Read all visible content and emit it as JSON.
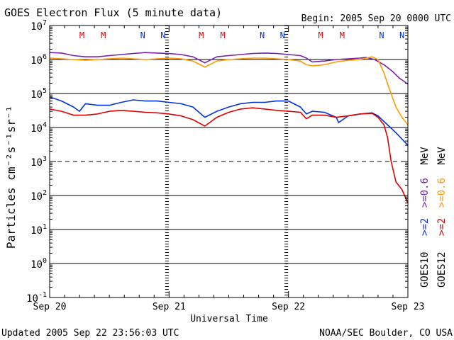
{
  "title": "GOES Electron Flux (5 minute data)",
  "begin_label": "Begin: 2005 Sep 20 0000 UTC",
  "footer_left": "Updated 2005 Sep 22 23:56:03 UTC",
  "footer_right": "NOAA/SEC Boulder, CO USA",
  "colors": {
    "goes12_low": "#ff9900",
    "goes12_high": "#dd0000",
    "goes10_low": "#7722aa",
    "goes10_high": "#0033dd",
    "marker_m": "#dd0000",
    "marker_n": "#0033dd",
    "axis": "#000000"
  },
  "legend": {
    "goes10": {
      "sat": "GOES10",
      "e2": ">=2",
      "e06": ">=0.6",
      "unit": "MeV"
    },
    "goes12": {
      "sat": "GOES12",
      "e2": ">=2",
      "e06": ">=0.6",
      "unit": "MeV"
    }
  },
  "chart_data": {
    "type": "line",
    "title": "GOES Electron Flux (5 minute data)",
    "xlabel": "Universal Time",
    "ylabel": "Particles cm⁻²s⁻¹sr⁻¹",
    "x_unit": "days since 2005 Sep 20 00:00 UTC",
    "xlim": [
      0,
      3
    ],
    "x_ticks": [
      {
        "value": 0,
        "label": "Sep 20"
      },
      {
        "value": 1,
        "label": "Sep 21"
      },
      {
        "value": 2,
        "label": "Sep 22"
      },
      {
        "value": 3,
        "label": "Sep 23"
      }
    ],
    "y_scale": "log",
    "ylim_exponent": [
      -1,
      7
    ],
    "y_ticks": [
      {
        "exp": -1,
        "base": "10",
        "sup": "-1"
      },
      {
        "exp": 0,
        "base": "10",
        "sup": "0"
      },
      {
        "exp": 1,
        "base": "10",
        "sup": "1"
      },
      {
        "exp": 2,
        "base": "10",
        "sup": "2"
      },
      {
        "exp": 3,
        "base": "10",
        "sup": "3"
      },
      {
        "exp": 4,
        "base": "10",
        "sup": "4"
      },
      {
        "exp": 5,
        "base": "10",
        "sup": "5"
      },
      {
        "exp": 6,
        "base": "10",
        "sup": "6"
      },
      {
        "exp": 7,
        "base": "10",
        "sup": "7"
      }
    ],
    "solid_gridlines_exp": [
      0,
      1,
      2,
      4,
      5,
      6
    ],
    "dashed_gridlines_exp": [
      3
    ],
    "local_time_markers": [
      {
        "label": "M",
        "x": 0.27
      },
      {
        "label": "M",
        "x": 0.45
      },
      {
        "label": "N",
        "x": 0.78
      },
      {
        "label": "N",
        "x": 0.95
      },
      {
        "label": "M",
        "x": 1.27
      },
      {
        "label": "M",
        "x": 1.45
      },
      {
        "label": "N",
        "x": 1.78
      },
      {
        "label": "N",
        "x": 1.95
      },
      {
        "label": "M",
        "x": 2.27
      },
      {
        "label": "M",
        "x": 2.45
      },
      {
        "label": "N",
        "x": 2.78
      },
      {
        "label": "N",
        "x": 2.95
      }
    ],
    "series": [
      {
        "name": "GOES10 >=0.6 MeV",
        "color_key": "goes10_low",
        "points": [
          [
            0.0,
            1600000.0
          ],
          [
            0.1,
            1550000.0
          ],
          [
            0.2,
            1300000.0
          ],
          [
            0.3,
            1200000.0
          ],
          [
            0.4,
            1200000.0
          ],
          [
            0.5,
            1300000.0
          ],
          [
            0.6,
            1400000.0
          ],
          [
            0.7,
            1500000.0
          ],
          [
            0.8,
            1600000.0
          ],
          [
            0.9,
            1550000.0
          ],
          [
            1.0,
            1500000.0
          ],
          [
            1.1,
            1400000.0
          ],
          [
            1.2,
            1200000.0
          ],
          [
            1.3,
            800000.0
          ],
          [
            1.4,
            1200000.0
          ],
          [
            1.5,
            1300000.0
          ],
          [
            1.6,
            1400000.0
          ],
          [
            1.7,
            1500000.0
          ],
          [
            1.8,
            1550000.0
          ],
          [
            1.9,
            1500000.0
          ],
          [
            2.0,
            1400000.0
          ],
          [
            2.1,
            1300000.0
          ],
          [
            2.15,
            1100000.0
          ],
          [
            2.2,
            850000.0
          ],
          [
            2.3,
            900000.0
          ],
          [
            2.4,
            1000000.0
          ],
          [
            2.5,
            1050000.0
          ],
          [
            2.6,
            1100000.0
          ],
          [
            2.65,
            1150000.0
          ],
          [
            2.72,
            1000000.0
          ],
          [
            2.8,
            700000.0
          ],
          [
            2.87,
            450000.0
          ],
          [
            2.93,
            280000.0
          ],
          [
            3.0,
            190000.0
          ]
        ]
      },
      {
        "name": "GOES12 >=0.6 MeV",
        "color_key": "goes12_low",
        "points": [
          [
            0.0,
            1100000.0
          ],
          [
            0.1,
            1050000.0
          ],
          [
            0.2,
            1000000.0
          ],
          [
            0.3,
            950000.0
          ],
          [
            0.4,
            1000000.0
          ],
          [
            0.5,
            1050000.0
          ],
          [
            0.6,
            1100000.0
          ],
          [
            0.7,
            1050000.0
          ],
          [
            0.8,
            1000000.0
          ],
          [
            0.9,
            1050000.0
          ],
          [
            1.0,
            1100000.0
          ],
          [
            1.1,
            1050000.0
          ],
          [
            1.2,
            900000.0
          ],
          [
            1.3,
            600000.0
          ],
          [
            1.4,
            900000.0
          ],
          [
            1.5,
            1000000.0
          ],
          [
            1.6,
            1050000.0
          ],
          [
            1.7,
            1100000.0
          ],
          [
            1.8,
            1100000.0
          ],
          [
            1.9,
            1050000.0
          ],
          [
            2.0,
            1000000.0
          ],
          [
            2.1,
            900000.0
          ],
          [
            2.15,
            700000.0
          ],
          [
            2.2,
            650000.0
          ],
          [
            2.3,
            700000.0
          ],
          [
            2.4,
            850000.0
          ],
          [
            2.5,
            950000.0
          ],
          [
            2.6,
            1000000.0
          ],
          [
            2.7,
            1200000.0
          ],
          [
            2.75,
            1000000.0
          ],
          [
            2.8,
            400000.0
          ],
          [
            2.85,
            120000.0
          ],
          [
            2.9,
            40000.0
          ],
          [
            2.95,
            20000.0
          ],
          [
            3.0,
            12000.0
          ]
        ]
      },
      {
        "name": "GOES10 >=2 MeV",
        "color_key": "goes10_high",
        "points": [
          [
            0.0,
            80000.0
          ],
          [
            0.1,
            60000.0
          ],
          [
            0.2,
            40000.0
          ],
          [
            0.25,
            30000.0
          ],
          [
            0.3,
            50000.0
          ],
          [
            0.4,
            45000.0
          ],
          [
            0.5,
            45000.0
          ],
          [
            0.6,
            55000.0
          ],
          [
            0.7,
            65000.0
          ],
          [
            0.8,
            60000.0
          ],
          [
            0.9,
            60000.0
          ],
          [
            1.0,
            55000.0
          ],
          [
            1.1,
            50000.0
          ],
          [
            1.2,
            40000.0
          ],
          [
            1.3,
            20000.0
          ],
          [
            1.4,
            30000.0
          ],
          [
            1.5,
            40000.0
          ],
          [
            1.6,
            50000.0
          ],
          [
            1.7,
            55000.0
          ],
          [
            1.8,
            55000.0
          ],
          [
            1.9,
            60000.0
          ],
          [
            2.0,
            60000.0
          ],
          [
            2.1,
            40000.0
          ],
          [
            2.15,
            25000.0
          ],
          [
            2.2,
            30000.0
          ],
          [
            2.3,
            28000.0
          ],
          [
            2.4,
            20000.0
          ],
          [
            2.42,
            14000.0
          ],
          [
            2.5,
            22000.0
          ],
          [
            2.6,
            25000.0
          ],
          [
            2.7,
            27000.0
          ],
          [
            2.75,
            22000.0
          ],
          [
            2.8,
            15000.0
          ],
          [
            2.9,
            7000.0
          ],
          [
            3.0,
            3000.0
          ]
        ]
      },
      {
        "name": "GOES12 >=2 MeV",
        "color_key": "goes12_high",
        "points": [
          [
            0.0,
            35000.0
          ],
          [
            0.1,
            30000.0
          ],
          [
            0.2,
            23000.0
          ],
          [
            0.3,
            23000.0
          ],
          [
            0.4,
            25000.0
          ],
          [
            0.5,
            30000.0
          ],
          [
            0.6,
            32000.0
          ],
          [
            0.7,
            30000.0
          ],
          [
            0.8,
            28000.0
          ],
          [
            0.9,
            27000.0
          ],
          [
            1.0,
            25000.0
          ],
          [
            1.1,
            22000.0
          ],
          [
            1.2,
            17000.0
          ],
          [
            1.3,
            11000.0
          ],
          [
            1.4,
            20000.0
          ],
          [
            1.5,
            28000.0
          ],
          [
            1.6,
            35000.0
          ],
          [
            1.7,
            38000.0
          ],
          [
            1.8,
            35000.0
          ],
          [
            1.9,
            32000.0
          ],
          [
            2.0,
            30000.0
          ],
          [
            2.1,
            28000.0
          ],
          [
            2.15,
            18000.0
          ],
          [
            2.2,
            23000.0
          ],
          [
            2.3,
            23000.0
          ],
          [
            2.4,
            20000.0
          ],
          [
            2.5,
            22000.0
          ],
          [
            2.6,
            25000.0
          ],
          [
            2.7,
            26000.0
          ],
          [
            2.75,
            20000.0
          ],
          [
            2.8,
            12000.0
          ],
          [
            2.83,
            5000.0
          ],
          [
            2.86,
            1000.0
          ],
          [
            2.9,
            250.0
          ],
          [
            2.95,
            150.0
          ],
          [
            3.0,
            60.0
          ]
        ]
      }
    ]
  }
}
